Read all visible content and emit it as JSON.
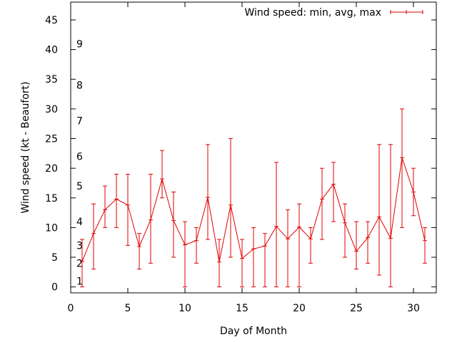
{
  "chart_data": {
    "type": "line",
    "title": "",
    "xlabel": "Day of Month",
    "ylabel": "Wind speed (kt - Beaufort)",
    "xlim": [
      0,
      32
    ],
    "ylim": [
      -1,
      48
    ],
    "xticks": [
      "0",
      "5",
      "10",
      "15",
      "20",
      "25",
      "30"
    ],
    "yticks": [
      "0",
      "5",
      "10",
      "15",
      "20",
      "25",
      "30",
      "35",
      "40",
      "45"
    ],
    "beaufort_labels": [
      {
        "label": "1",
        "value": 1
      },
      {
        "label": "2",
        "value": 4
      },
      {
        "label": "3",
        "value": 7
      },
      {
        "label": "4",
        "value": 11
      },
      {
        "label": "5",
        "value": 17
      },
      {
        "label": "6",
        "value": 22
      },
      {
        "label": "7",
        "value": 28
      },
      {
        "label": "8",
        "value": 34
      },
      {
        "label": "9",
        "value": 41
      }
    ],
    "grid": false,
    "legend": {
      "position": "top-right"
    },
    "color": "#e00000",
    "series": [
      {
        "name": "Wind speed: min, avg, max",
        "x": [
          1,
          2,
          3,
          4,
          5,
          6,
          7,
          8,
          9,
          10,
          11,
          12,
          13,
          14,
          15,
          16,
          17,
          18,
          19,
          20,
          21,
          22,
          23,
          24,
          25,
          26,
          27,
          28,
          29,
          30,
          31
        ],
        "avg": [
          4.3,
          9,
          13,
          14.8,
          13.8,
          6.8,
          11.3,
          18.2,
          11.2,
          7.1,
          7.8,
          15.1,
          4.2,
          13.8,
          4.8,
          6.4,
          6.9,
          10.2,
          8.1,
          10.1,
          8.1,
          14.8,
          17.3,
          10.8,
          6,
          8.3,
          11.8,
          8.2,
          21.8,
          16,
          7.8
        ],
        "min": [
          0,
          3,
          10,
          10,
          7,
          3,
          4,
          15,
          5,
          0,
          4,
          8,
          0,
          5,
          0,
          0,
          0,
          0,
          0,
          0,
          4,
          8,
          11,
          5,
          3,
          4,
          2,
          0,
          10,
          12,
          4
        ],
        "max": [
          8,
          14,
          17,
          19,
          19,
          9,
          19,
          23,
          16,
          11,
          10,
          24,
          8,
          25,
          8,
          10,
          9,
          21,
          13,
          14,
          10,
          20,
          21,
          14,
          11,
          11,
          24,
          24,
          30,
          20,
          10
        ]
      }
    ]
  }
}
